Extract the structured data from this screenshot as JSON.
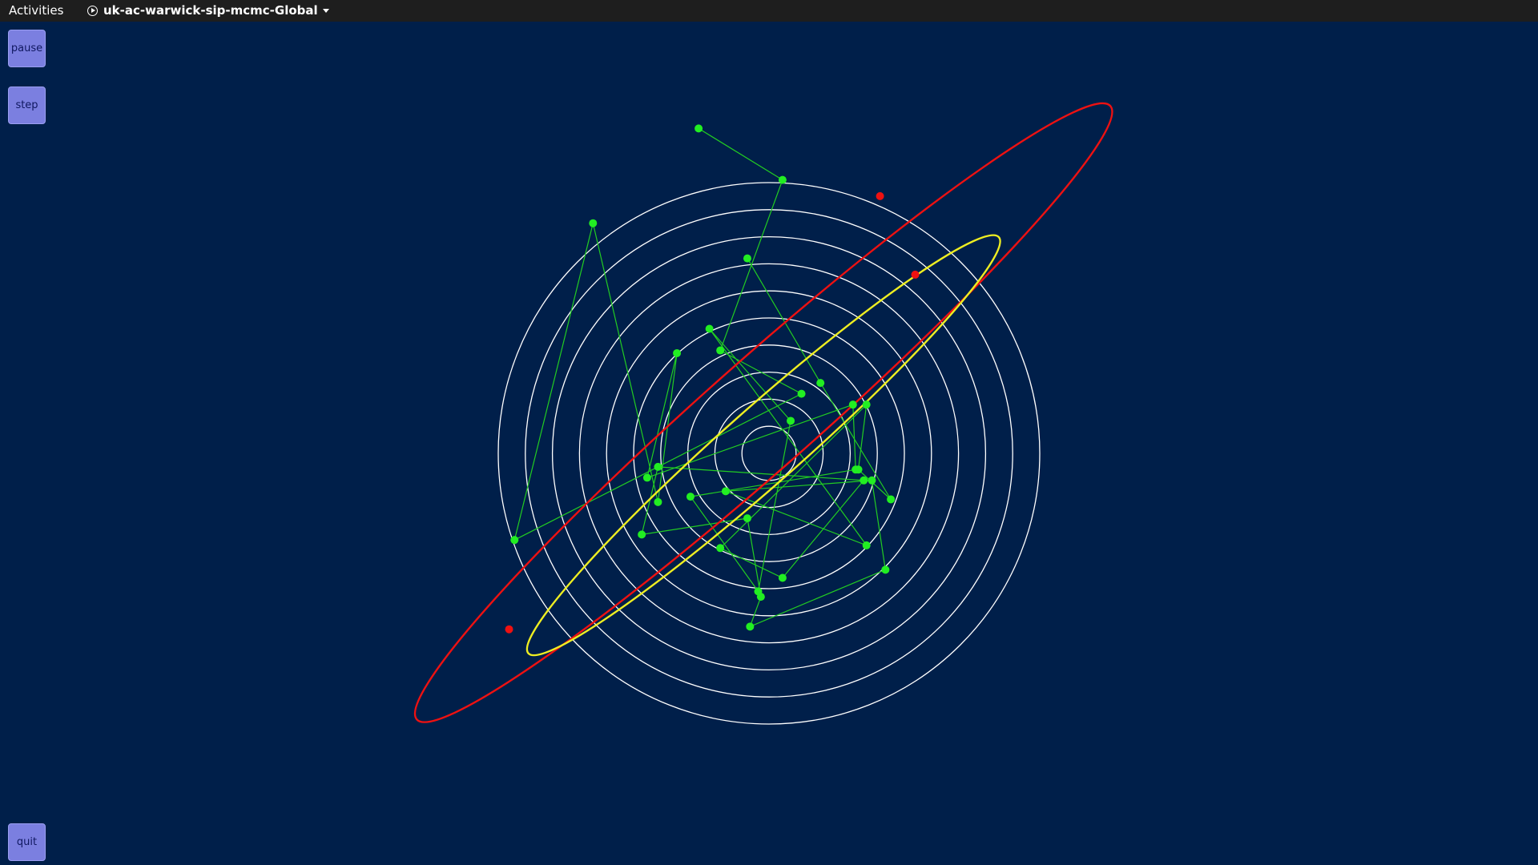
{
  "topbar": {
    "activities_label": "Activities",
    "app_title": "uk-ac-warwick-sip-mcmc-Global",
    "app_icon": "play-circle-icon",
    "menu_icon": "caret-down-icon"
  },
  "controls": {
    "pause_label": "pause",
    "step_label": "step",
    "quit_label": "quit"
  },
  "colors": {
    "background": "#001f4a",
    "topbar": "#1e1e1e",
    "button": "#7b7fe0",
    "button_text": "#101860",
    "rings": "#ffffff",
    "chain": "#22cc22",
    "samples": "#22ee22",
    "ellipse_outer": "#ee1111",
    "ellipse_inner": "#eeee22"
  },
  "rings": {
    "count": 10
  },
  "chain_points": [
    [
      -0.26,
      -1.2
    ],
    [
      0.05,
      -1.01
    ],
    [
      -0.18,
      -0.38
    ],
    [
      0.12,
      -0.22
    ],
    [
      -0.94,
      0.32
    ],
    [
      -0.65,
      -0.85
    ],
    [
      -0.41,
      0.18
    ],
    [
      -0.34,
      -0.37
    ],
    [
      -0.45,
      0.09
    ],
    [
      0.31,
      -0.18
    ],
    [
      0.32,
      0.06
    ],
    [
      -0.29,
      0.16
    ],
    [
      -0.04,
      0.51
    ],
    [
      0.08,
      -0.12
    ],
    [
      -0.22,
      -0.46
    ],
    [
      0.36,
      0.34
    ],
    [
      -0.16,
      0.14
    ],
    [
      0.38,
      0.1
    ],
    [
      0.43,
      0.43
    ],
    [
      -0.07,
      0.64
    ],
    [
      -0.03,
      0.53
    ],
    [
      -0.08,
      0.24
    ],
    [
      -0.47,
      0.3
    ],
    [
      -0.41,
      0.05
    ],
    [
      0.35,
      0.1
    ],
    [
      0.05,
      0.46
    ],
    [
      -0.18,
      0.35
    ],
    [
      0.36,
      -0.18
    ],
    [
      0.33,
      0.06
    ],
    [
      0.45,
      0.17
    ],
    [
      0.19,
      -0.26
    ],
    [
      -0.08,
      -0.72
    ]
  ],
  "ellipse_outer": {
    "center": [
      -0.02,
      -0.15
    ],
    "semi_major": 1.71,
    "semi_minor": 0.2,
    "angle_deg": 41.5
  },
  "ellipse_inner": {
    "center": [
      -0.02,
      -0.03
    ],
    "semi_major": 1.16,
    "semi_minor": 0.14,
    "angle_deg": 41.5
  },
  "ellipse_markers": [
    [
      0.41,
      -0.95
    ],
    [
      0.54,
      -0.66
    ],
    [
      -0.96,
      0.65
    ]
  ]
}
